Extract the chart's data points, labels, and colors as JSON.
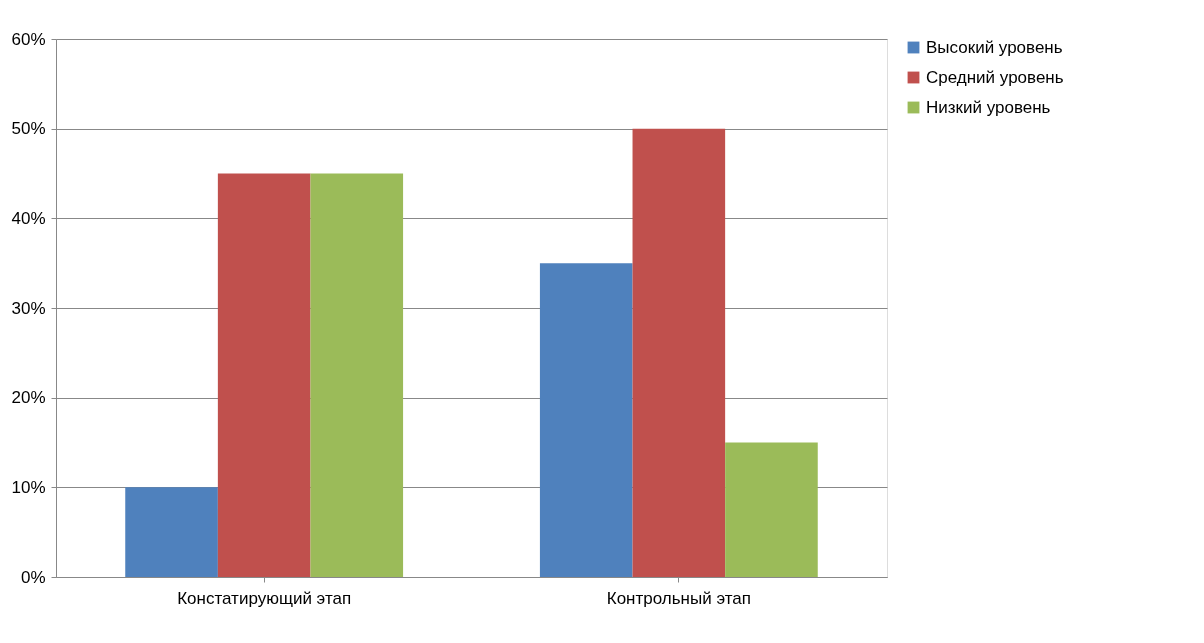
{
  "chart_data": {
    "type": "bar",
    "categories": [
      "Констатирующий этап",
      "Контрольный этап"
    ],
    "series": [
      {
        "name": "Высокий уровень",
        "color": "#4f81bd",
        "values": [
          10,
          35
        ]
      },
      {
        "name": "Средний уровень",
        "color": "#c0504d",
        "values": [
          45,
          50
        ]
      },
      {
        "name": "Низкий уровень",
        "color": "#9bbb59",
        "values": [
          45,
          15
        ]
      }
    ],
    "ylim": [
      0,
      60
    ],
    "yticks": [
      {
        "value": 0,
        "label": "0%"
      },
      {
        "value": 10,
        "label": "10%"
      },
      {
        "value": 20,
        "label": "20%"
      },
      {
        "value": 30,
        "label": "30%"
      },
      {
        "value": 40,
        "label": "40%"
      },
      {
        "value": 50,
        "label": "50%"
      },
      {
        "value": 60,
        "label": "60%"
      }
    ],
    "grid": "y",
    "legend": "right"
  }
}
